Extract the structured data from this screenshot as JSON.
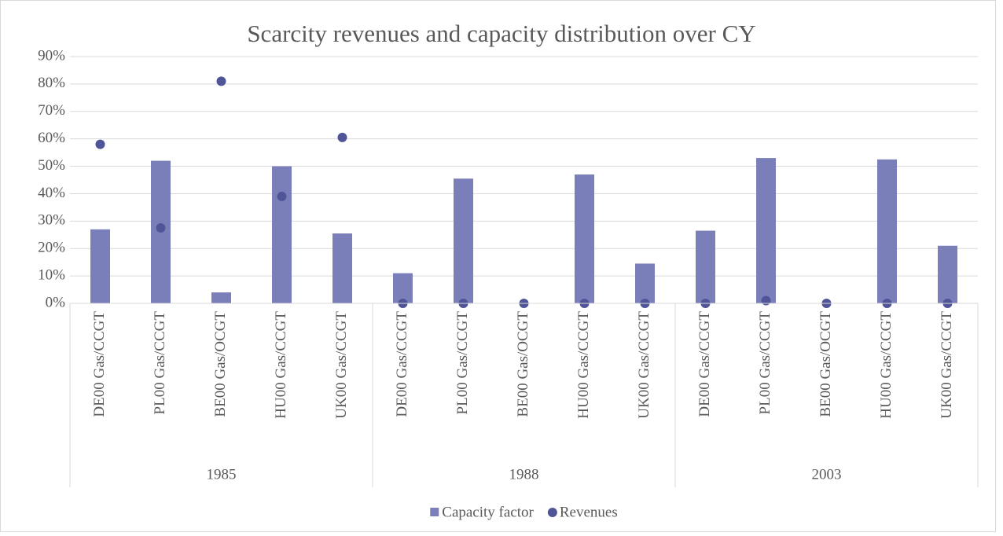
{
  "chart_data": {
    "type": "combo",
    "title": "Scarcity revenues and capacity distribution over CY",
    "groups": [
      {
        "name": "1985",
        "categories": [
          "DE00 Gas/CCGT",
          "PL00 Gas/CCGT",
          "BE00 Gas/OCGT",
          "HU00 Gas/CCGT",
          "UK00 Gas/CCGT"
        ]
      },
      {
        "name": "1988",
        "categories": [
          "DE00 Gas/CCGT",
          "PL00 Gas/CCGT",
          "BE00 Gas/OCGT",
          "HU00 Gas/CCGT",
          "UK00 Gas/CCGT"
        ]
      },
      {
        "name": "2003",
        "categories": [
          "DE00 Gas/CCGT",
          "PL00 Gas/CCGT",
          "BE00 Gas/OCGT",
          "HU00 Gas/CCGT",
          "UK00 Gas/CCGT"
        ]
      }
    ],
    "series": [
      {
        "name": "Capacity factor",
        "type": "bar",
        "color": "#7b7fb9",
        "values": [
          27,
          52,
          4,
          50,
          25.5,
          11,
          45.5,
          0,
          47,
          14.5,
          26.5,
          53,
          0,
          52.5,
          21
        ]
      },
      {
        "name": "Revenues",
        "type": "scatter",
        "color": "#4f5597",
        "values": [
          58,
          27.5,
          81,
          39,
          60.5,
          0,
          0,
          0,
          0,
          0,
          0,
          1,
          0,
          0,
          0
        ]
      }
    ],
    "ylim": [
      0,
      90
    ],
    "yticks": [
      {
        "value": 0,
        "label": "0%"
      },
      {
        "value": 10,
        "label": "10%"
      },
      {
        "value": 20,
        "label": "20%"
      },
      {
        "value": 30,
        "label": "30%"
      },
      {
        "value": 40,
        "label": "40%"
      },
      {
        "value": 50,
        "label": "50%"
      },
      {
        "value": 60,
        "label": "60%"
      },
      {
        "value": 70,
        "label": "70%"
      },
      {
        "value": 80,
        "label": "80%"
      },
      {
        "value": 90,
        "label": "90%"
      }
    ],
    "grid": true,
    "legend": "bottom"
  }
}
